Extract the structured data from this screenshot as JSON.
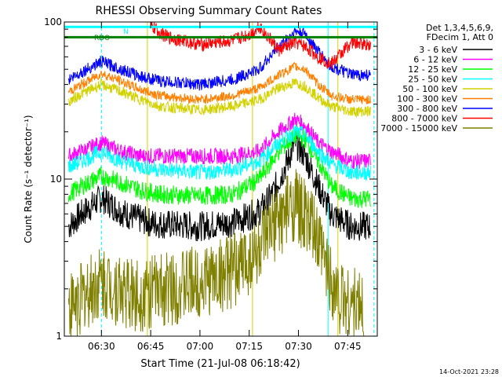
{
  "chart_data": {
    "type": "line",
    "title": "RHESSI Observing Summary Count Rates",
    "xlabel": "Start Time (21-Jul-08 06:18:42)",
    "ylabel": "Count Rate (s⁻¹ detector⁻¹)",
    "y_scale": "log",
    "ylim": [
      1,
      100
    ],
    "x_range": [
      "06:18:42",
      "07:54"
    ],
    "x_ticks": [
      "06:30",
      "06:45",
      "07:00",
      "07:15",
      "07:30",
      "07:45"
    ],
    "y_ticks": [
      "1",
      "10",
      "100"
    ],
    "grid": false,
    "legend_header": [
      "Det 1,3,4,5,6,9,",
      "FDecim 1, Att 0"
    ],
    "legend_position": "right",
    "series": [
      {
        "name": "3 - 6 keV",
        "color": "#000000",
        "points": [
          [
            "06:20",
            5
          ],
          [
            "06:24",
            6
          ],
          [
            "06:30",
            7.6
          ],
          [
            "06:36",
            6.2
          ],
          [
            "06:40",
            5.7
          ],
          [
            "06:46",
            5.2
          ],
          [
            "07:00",
            5
          ],
          [
            "07:10",
            5.3
          ],
          [
            "07:18",
            6.2
          ],
          [
            "07:22",
            8
          ],
          [
            "07:26",
            12
          ],
          [
            "07:29",
            17
          ],
          [
            "07:32",
            14
          ],
          [
            "07:36",
            9
          ],
          [
            "07:40",
            6
          ],
          [
            "07:46",
            5
          ],
          [
            "07:52",
            5
          ]
        ]
      },
      {
        "name": "6 - 12 keV",
        "color": "#ff00ff",
        "points": [
          [
            "06:20",
            14
          ],
          [
            "06:24",
            15
          ],
          [
            "06:30",
            17
          ],
          [
            "06:36",
            15
          ],
          [
            "06:42",
            14
          ],
          [
            "06:48",
            14
          ],
          [
            "07:00",
            14
          ],
          [
            "07:10",
            14
          ],
          [
            "07:18",
            15
          ],
          [
            "07:24",
            20
          ],
          [
            "07:29",
            24
          ],
          [
            "07:32",
            22
          ],
          [
            "07:36",
            17
          ],
          [
            "07:40",
            15
          ],
          [
            "07:46",
            13
          ],
          [
            "07:52",
            13
          ]
        ]
      },
      {
        "name": "12 - 25 keV",
        "color": "#00ff00",
        "points": [
          [
            "06:20",
            8
          ],
          [
            "06:24",
            9
          ],
          [
            "06:30",
            10.5
          ],
          [
            "06:36",
            9.5
          ],
          [
            "06:42",
            8.5
          ],
          [
            "06:48",
            8
          ],
          [
            "07:00",
            7.8
          ],
          [
            "07:10",
            8
          ],
          [
            "07:18",
            10
          ],
          [
            "07:24",
            15
          ],
          [
            "07:29",
            19
          ],
          [
            "07:32",
            18
          ],
          [
            "07:36",
            13
          ],
          [
            "07:40",
            9
          ],
          [
            "07:46",
            7.5
          ],
          [
            "07:52",
            7.5
          ]
        ]
      },
      {
        "name": "25 - 50 keV",
        "color": "#00ffff",
        "points": [
          [
            "06:20",
            12
          ],
          [
            "06:24",
            13
          ],
          [
            "06:30",
            15
          ],
          [
            "06:36",
            13
          ],
          [
            "06:42",
            12
          ],
          [
            "06:48",
            11.5
          ],
          [
            "07:00",
            11
          ],
          [
            "07:10",
            11.5
          ],
          [
            "07:18",
            13
          ],
          [
            "07:24",
            17
          ],
          [
            "07:29",
            20
          ],
          [
            "07:32",
            19
          ],
          [
            "07:36",
            15
          ],
          [
            "07:40",
            12.5
          ],
          [
            "07:46",
            11
          ],
          [
            "07:52",
            11
          ]
        ]
      },
      {
        "name": "50 - 100 keV",
        "color": "#d2d200",
        "points": [
          [
            "06:20",
            31
          ],
          [
            "06:24",
            35
          ],
          [
            "06:30",
            40
          ],
          [
            "06:36",
            36
          ],
          [
            "06:42",
            32
          ],
          [
            "06:48",
            29
          ],
          [
            "07:00",
            27.5
          ],
          [
            "07:10",
            29
          ],
          [
            "07:18",
            32
          ],
          [
            "07:24",
            38
          ],
          [
            "07:29",
            41
          ],
          [
            "07:32",
            39
          ],
          [
            "07:36",
            33
          ],
          [
            "07:40",
            29
          ],
          [
            "07:46",
            27
          ],
          [
            "07:52",
            27
          ]
        ]
      },
      {
        "name": "100 - 300 keV",
        "color": "#ff8000",
        "points": [
          [
            "06:20",
            36
          ],
          [
            "06:24",
            40
          ],
          [
            "06:30",
            47
          ],
          [
            "06:36",
            42
          ],
          [
            "06:42",
            37
          ],
          [
            "06:48",
            34
          ],
          [
            "07:00",
            32
          ],
          [
            "07:10",
            34
          ],
          [
            "07:18",
            38
          ],
          [
            "07:24",
            46
          ],
          [
            "07:29",
            52
          ],
          [
            "07:32",
            50
          ],
          [
            "07:36",
            40
          ],
          [
            "07:40",
            34
          ],
          [
            "07:46",
            32
          ],
          [
            "07:52",
            32
          ]
        ]
      },
      {
        "name": "300 - 800 keV",
        "color": "#0000ff",
        "points": [
          [
            "06:20",
            43
          ],
          [
            "06:24",
            48
          ],
          [
            "06:30",
            56
          ],
          [
            "06:36",
            50
          ],
          [
            "06:42",
            45
          ],
          [
            "06:48",
            42
          ],
          [
            "07:00",
            40
          ],
          [
            "07:10",
            43
          ],
          [
            "07:18",
            50
          ],
          [
            "07:24",
            70
          ],
          [
            "07:29",
            87
          ],
          [
            "07:32",
            84
          ],
          [
            "07:36",
            65
          ],
          [
            "07:40",
            52
          ],
          [
            "07:46",
            46
          ],
          [
            "07:52",
            46
          ]
        ]
      },
      {
        "name": "800 - 7000 keV",
        "color": "#ff0000",
        "points": [
          [
            "06:45",
            94
          ],
          [
            "06:50",
            80
          ],
          [
            "07:00",
            72
          ],
          [
            "07:10",
            76
          ],
          [
            "07:16",
            85
          ],
          [
            "07:18",
            95
          ],
          [
            "07:24",
            66
          ],
          [
            "07:29",
            74
          ],
          [
            "07:32",
            70
          ],
          [
            "07:36",
            60
          ],
          [
            "07:40",
            54
          ],
          [
            "07:46",
            74
          ],
          [
            "07:52",
            72
          ]
        ]
      },
      {
        "name": "7000 - 15000 keV",
        "color": "#808000",
        "points": [
          [
            "06:20",
            1.5
          ],
          [
            "06:30",
            2.2
          ],
          [
            "06:40",
            1.8
          ],
          [
            "06:50",
            2
          ],
          [
            "07:00",
            2.2
          ],
          [
            "07:10",
            2.6
          ],
          [
            "07:18",
            3.5
          ],
          [
            "07:24",
            5.5
          ],
          [
            "07:29",
            7
          ],
          [
            "07:34",
            5
          ],
          [
            "07:38",
            3
          ],
          [
            "07:42",
            1.8
          ],
          [
            "07:50",
            1.5
          ]
        ]
      }
    ],
    "reference_lines": [
      {
        "name": "RD0",
        "color": "#008000",
        "value": 80
      },
      {
        "name": "N",
        "color": "#00ffff",
        "value": 93
      }
    ],
    "markers": [
      {
        "name": "RDO",
        "color": "#008000"
      },
      {
        "name": "N",
        "color": "#00ffff"
      }
    ]
  },
  "footer": {
    "date": "14-Oct-2021 23:28"
  }
}
